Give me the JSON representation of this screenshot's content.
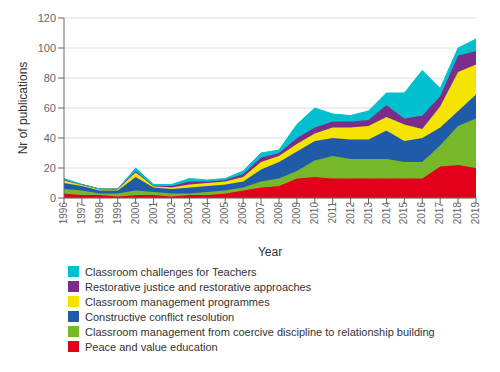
{
  "chart_data": {
    "type": "area",
    "stacked": true,
    "xlabel": "Year",
    "ylabel": "Nr of publications",
    "x": [
      1996,
      1997,
      1998,
      1999,
      2000,
      2001,
      2002,
      2003,
      2004,
      2005,
      2006,
      2007,
      2008,
      2009,
      2010,
      2011,
      2012,
      2013,
      2014,
      2015,
      2016,
      2017,
      2018,
      2019
    ],
    "xlim": [
      1996,
      2019
    ],
    "xticks": [
      1996,
      1997,
      1998,
      1999,
      2000,
      2001,
      2002,
      2003,
      2004,
      2005,
      2006,
      2007,
      2008,
      2009,
      2010,
      2011,
      2012,
      2013,
      2014,
      2015,
      2016,
      2017,
      2018,
      2019
    ],
    "ylim": [
      0,
      120
    ],
    "yticks": [
      0,
      20,
      40,
      60,
      80,
      100,
      120
    ],
    "grid": "y",
    "legend": "bottom",
    "series": [
      {
        "name": "Peace and value education",
        "color": "#e2001a",
        "values": [
          3,
          2,
          2,
          1,
          2,
          2,
          1,
          2,
          2,
          3,
          5,
          7,
          8,
          13,
          14,
          13,
          13,
          13,
          13,
          13,
          13,
          21,
          22,
          20
        ]
      },
      {
        "name": "Classroom management from coercive discipline to relationship building",
        "color": "#76b82a",
        "values": [
          3,
          3,
          1,
          2,
          3,
          2,
          2,
          1,
          2,
          2,
          2,
          4,
          5,
          5,
          11,
          15,
          13,
          13,
          13,
          11,
          11,
          14,
          26,
          33
        ]
      },
      {
        "name": "Constructive conflict resolution",
        "color": "#1f5ba8",
        "values": [
          4,
          3,
          2,
          2,
          9,
          3,
          3,
          4,
          4,
          4,
          4,
          8,
          11,
          13,
          13,
          12,
          13,
          13,
          19,
          14,
          16,
          12,
          10,
          16
        ]
      },
      {
        "name": "Classroom management programmes",
        "color": "#f5e400",
        "values": [
          2,
          1,
          1,
          1,
          3,
          1,
          1,
          2,
          2,
          2,
          3,
          5,
          4,
          5,
          5,
          7,
          8,
          9,
          9,
          11,
          6,
          14,
          26,
          20
        ]
      },
      {
        "name": "Restorative justice and restorative approaches",
        "color": "#7b2d8b",
        "values": [
          0,
          0,
          0,
          0,
          1,
          0,
          1,
          2,
          1,
          1,
          2,
          3,
          2,
          4,
          4,
          4,
          4,
          4,
          8,
          4,
          9,
          7,
          11,
          9
        ]
      },
      {
        "name": "Classroom challenges for Teachers",
        "color": "#00c0d0",
        "values": [
          1,
          0,
          0,
          0,
          2,
          1,
          1,
          2,
          1,
          1,
          2,
          3,
          2,
          9,
          13,
          5,
          4,
          6,
          8,
          17,
          30,
          5,
          5,
          8
        ]
      }
    ]
  }
}
